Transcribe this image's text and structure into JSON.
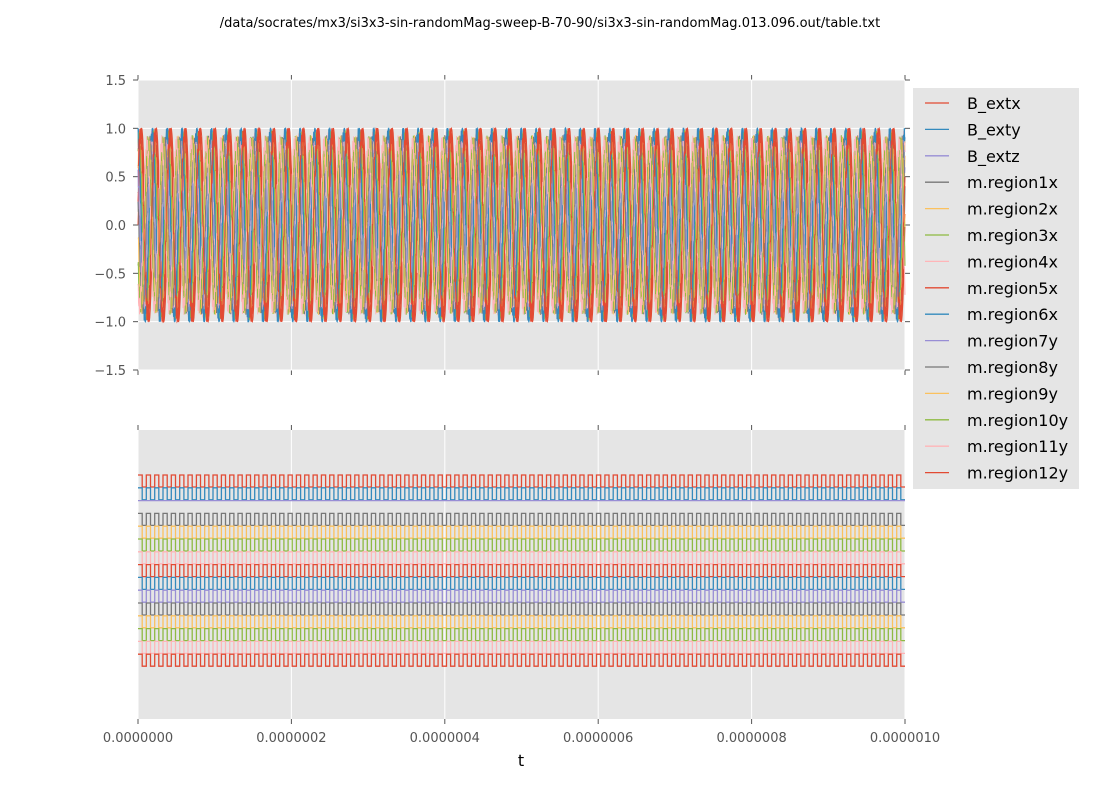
{
  "chart_data": [
    {
      "type": "line",
      "title": "/data/socrates/mx3/si3x3-sin-randomMag-sweep-B-70-90/si3x3-sin-randomMag.013.096.out/table.txt",
      "xlim": [
        0,
        1e-06
      ],
      "ylim": [
        -1.5,
        1.5
      ],
      "yticks": [
        "1.5",
        "1.0",
        "0.5",
        "0.0",
        "−0.5",
        "−1.0",
        "−1.5"
      ],
      "ytick_values": [
        1.5,
        1.0,
        0.5,
        0.0,
        -0.5,
        -1.0,
        -1.5
      ],
      "grid": true,
      "series": [
        {
          "name": "B_extx",
          "color": "#E24A33",
          "amplitude": 1.0,
          "frequency_hz": 52000000,
          "phase": 0
        },
        {
          "name": "B_exty",
          "color": "#348ABD",
          "amplitude": 1.0,
          "frequency_hz": 52000000,
          "phase": 1.57
        },
        {
          "name": "B_extz",
          "color": "#988ED5",
          "amplitude": 0.0,
          "frequency_hz": 0,
          "phase": 0
        },
        {
          "name": "m.region1x",
          "color": "#777777",
          "amplitude": 0.85,
          "frequency_hz": 52000000,
          "phase": 0.4
        },
        {
          "name": "m.region2x",
          "color": "#FBC15E",
          "amplitude": 0.9,
          "frequency_hz": 52000000,
          "phase": 0.8
        },
        {
          "name": "m.region3x",
          "color": "#8EBA42",
          "amplitude": 0.9,
          "frequency_hz": 52000000,
          "phase": 1.2
        },
        {
          "name": "m.region4x",
          "color": "#FFB5B8",
          "amplitude": 0.9,
          "frequency_hz": 52000000,
          "phase": 2.0
        },
        {
          "name": "m.region5x",
          "color": "#E24A33",
          "amplitude": 0.95,
          "frequency_hz": 52000000,
          "phase": 0.2
        },
        {
          "name": "m.region6x",
          "color": "#348ABD",
          "amplitude": 0.95,
          "frequency_hz": 52000000,
          "phase": 1.8
        },
        {
          "name": "m.region7y",
          "color": "#988ED5",
          "amplitude": 0.8,
          "frequency_hz": 52000000,
          "phase": 2.4
        },
        {
          "name": "m.region8y",
          "color": "#777777",
          "amplitude": 0.85,
          "frequency_hz": 52000000,
          "phase": 2.8
        },
        {
          "name": "m.region9y",
          "color": "#FBC15E",
          "amplitude": 0.85,
          "frequency_hz": 52000000,
          "phase": 3.2
        },
        {
          "name": "m.region10y",
          "color": "#8EBA42",
          "amplitude": 0.85,
          "frequency_hz": 52000000,
          "phase": 3.6
        },
        {
          "name": "m.region11y",
          "color": "#FFB5B8",
          "amplitude": 0.85,
          "frequency_hz": 52000000,
          "phase": 4.0
        },
        {
          "name": "m.region12y",
          "color": "#E24A33",
          "amplitude": 0.95,
          "frequency_hz": 52000000,
          "phase": 0.6
        }
      ],
      "legend_placement": "right"
    },
    {
      "type": "line",
      "xlabel": "t",
      "xlim": [
        0,
        1e-06
      ],
      "xticks": [
        "0.0000000",
        "0.0000002",
        "0.0000004",
        "0.0000006",
        "0.0000008",
        "0.0000010"
      ],
      "xtick_values": [
        0,
        2e-07,
        4e-07,
        6e-07,
        8e-07,
        1e-06
      ],
      "grid": true,
      "description_style": "stacked square waves, one row per series, top to bottom in legend order",
      "square_wave_frequency_hz": 92000000,
      "rows": [
        {
          "name": "B_extx",
          "color": "#E24A33",
          "square": true
        },
        {
          "name": "B_exty",
          "color": "#348ABD",
          "square": true
        },
        {
          "name": "B_extz",
          "color": "#988ED5",
          "square": false
        },
        {
          "name": "m.region1x",
          "color": "#777777",
          "square": true
        },
        {
          "name": "m.region2x",
          "color": "#FBC15E",
          "square": true
        },
        {
          "name": "m.region3x",
          "color": "#8EBA42",
          "square": true
        },
        {
          "name": "m.region4x",
          "color": "#FFB5B8",
          "square": true
        },
        {
          "name": "m.region5x",
          "color": "#E24A33",
          "square": true
        },
        {
          "name": "m.region6x",
          "color": "#348ABD",
          "square": true
        },
        {
          "name": "m.region7y",
          "color": "#988ED5",
          "square": true
        },
        {
          "name": "m.region8y",
          "color": "#777777",
          "square": true
        },
        {
          "name": "m.region9y",
          "color": "#FBC15E",
          "square": true
        },
        {
          "name": "m.region10y",
          "color": "#8EBA42",
          "square": true
        },
        {
          "name": "m.region11y",
          "color": "#FFB5B8",
          "square": true
        },
        {
          "name": "m.region12y",
          "color": "#E24A33",
          "square": true
        }
      ]
    }
  ]
}
